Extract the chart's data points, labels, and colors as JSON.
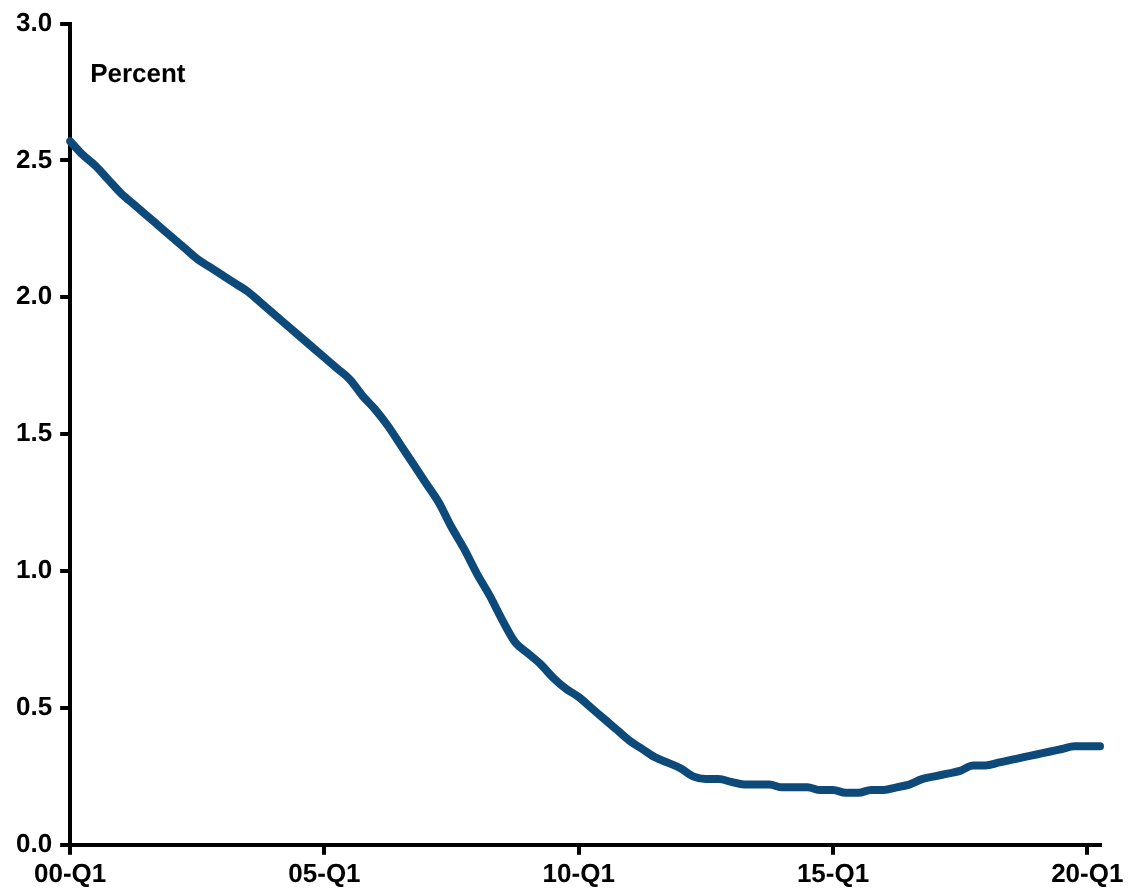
{
  "chart_data": {
    "type": "line",
    "ylabel": "Percent",
    "categories": [
      "00-Q1",
      null,
      null,
      null,
      null,
      null,
      null,
      null,
      null,
      null,
      null,
      null,
      null,
      null,
      null,
      null,
      null,
      null,
      null,
      null,
      "05-Q1",
      null,
      null,
      null,
      null,
      null,
      null,
      null,
      null,
      null,
      null,
      null,
      null,
      null,
      null,
      null,
      null,
      null,
      null,
      null,
      "10-Q1",
      null,
      null,
      null,
      null,
      null,
      null,
      null,
      null,
      null,
      null,
      null,
      null,
      null,
      null,
      null,
      null,
      null,
      null,
      null,
      "15-Q1",
      null,
      null,
      null,
      null,
      null,
      null,
      null,
      null,
      null,
      null,
      null,
      null,
      null,
      null,
      null,
      null,
      null,
      null,
      null,
      "20-Q1",
      null
    ],
    "series": [
      {
        "color": "#0d4a7a",
        "values": [
          2.57,
          2.52,
          2.48,
          2.43,
          2.38,
          2.34,
          2.3,
          2.26,
          2.22,
          2.18,
          2.14,
          2.11,
          2.08,
          2.05,
          2.02,
          1.98,
          1.94,
          1.9,
          1.86,
          1.82,
          1.78,
          1.74,
          1.7,
          1.64,
          1.59,
          1.53,
          1.46,
          1.39,
          1.32,
          1.25,
          1.16,
          1.08,
          0.99,
          0.91,
          0.82,
          0.74,
          0.7,
          0.66,
          0.61,
          0.57,
          0.54,
          0.5,
          0.46,
          0.42,
          0.38,
          0.35,
          0.32,
          0.3,
          0.28,
          0.25,
          0.24,
          0.24,
          0.23,
          0.22,
          0.22,
          0.22,
          0.21,
          0.21,
          0.21,
          0.2,
          0.2,
          0.19,
          0.19,
          0.2,
          0.2,
          0.21,
          0.22,
          0.24,
          0.25,
          0.26,
          0.27,
          0.29,
          0.29,
          0.3,
          0.31,
          0.32,
          0.33,
          0.34,
          0.35,
          0.36,
          0.36,
          0.36
        ]
      }
    ],
    "ylim": [
      0,
      3
    ],
    "yticks": [
      {
        "value": 0,
        "label": "0.0"
      },
      {
        "value": 0.5,
        "label": "0.5"
      },
      {
        "value": 1,
        "label": "1.0"
      },
      {
        "value": 1.5,
        "label": "1.5"
      },
      {
        "value": 2,
        "label": "2.0"
      },
      {
        "value": 2.5,
        "label": "2.5"
      },
      {
        "value": 3,
        "label": "3.0"
      }
    ],
    "grid": false,
    "legend": false,
    "marker": "none",
    "line_style": "solid"
  }
}
